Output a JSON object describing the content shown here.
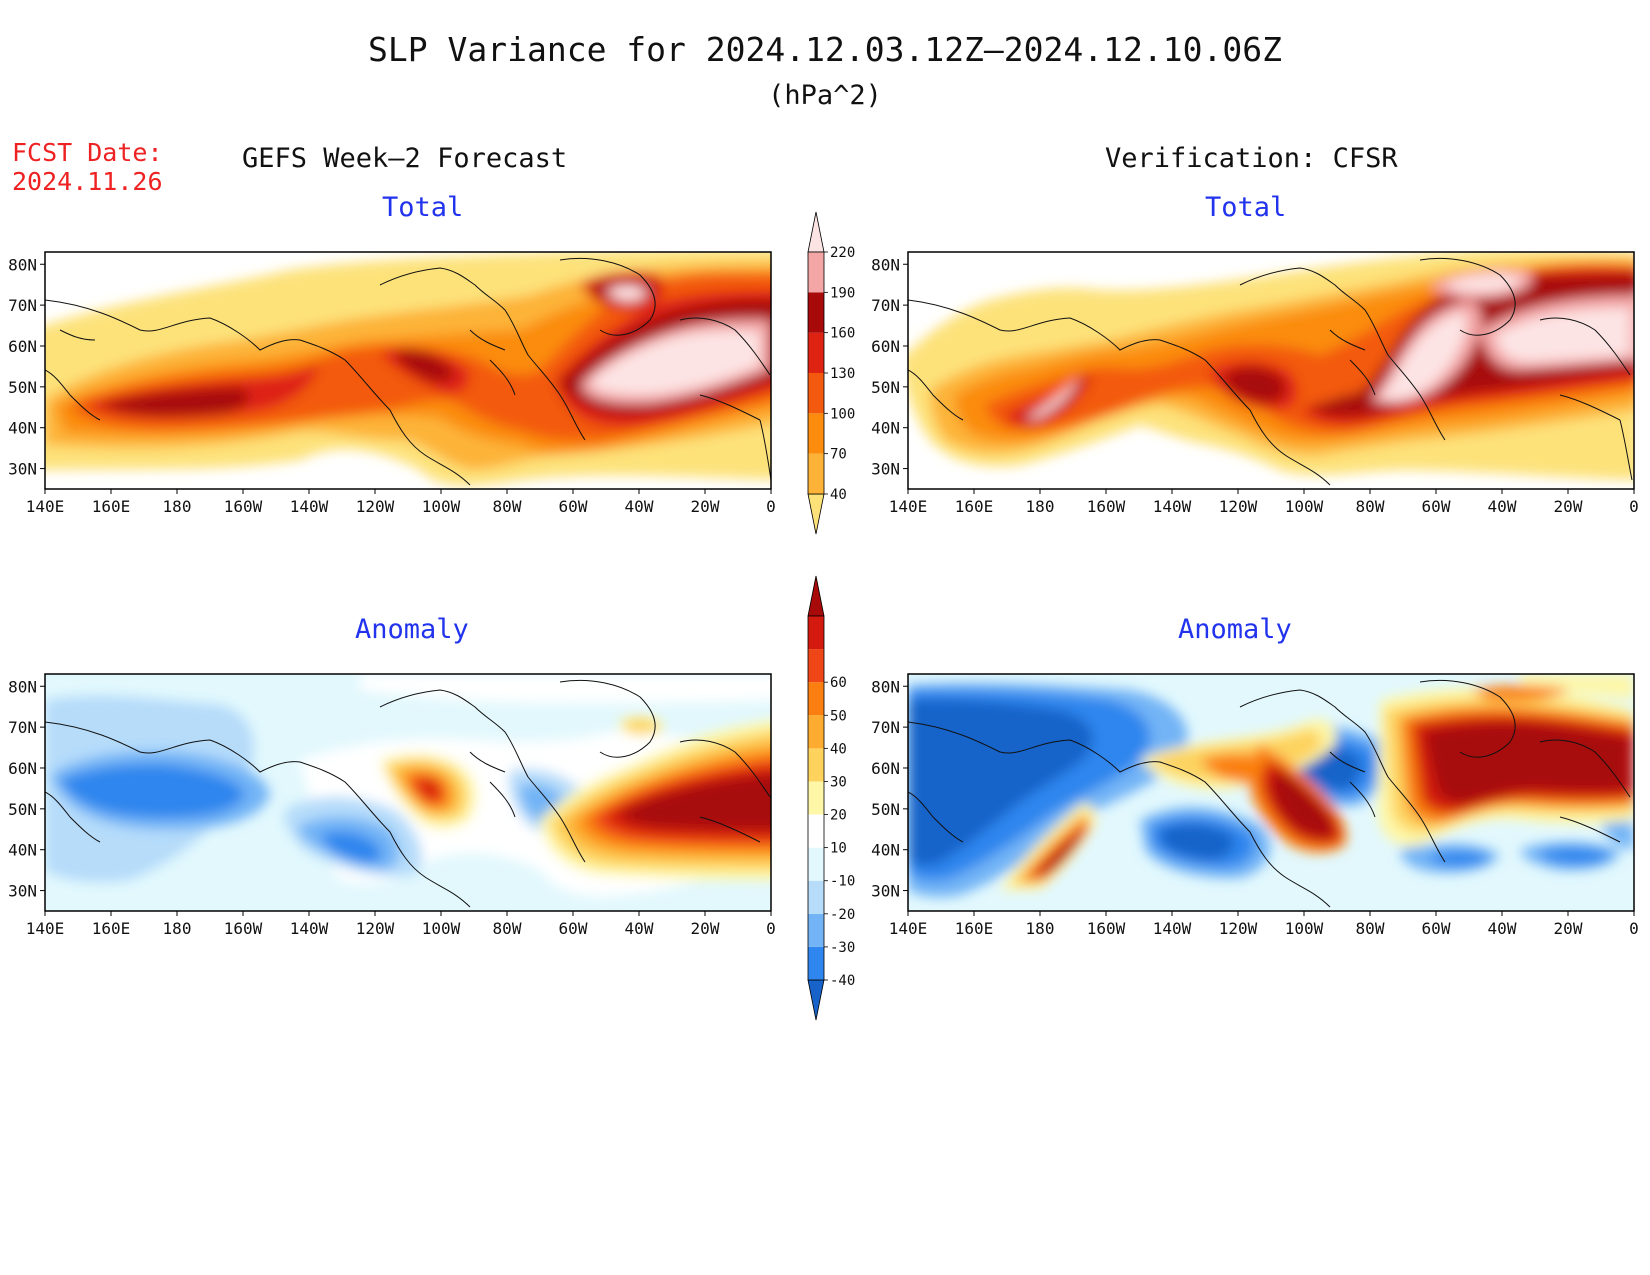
{
  "title": "SLP Variance for 2024.12.03.12Z–2024.12.10.06Z",
  "units": "(hPa^2)",
  "forecast_date_label": "FCST Date:",
  "forecast_date": "2024.11.26",
  "columns": {
    "left": "GEFS Week–2 Forecast",
    "right": "Verification: CFSR"
  },
  "panels": [
    {
      "id": "forecast-total",
      "title": "Total",
      "kind": "total"
    },
    {
      "id": "verification-total",
      "title": "Total",
      "kind": "total"
    },
    {
      "id": "forecast-anomaly",
      "title": "Anomaly",
      "kind": "anomaly"
    },
    {
      "id": "verification-anomaly",
      "title": "Anomaly",
      "kind": "anomaly"
    }
  ],
  "lon_labels": [
    "140E",
    "160E",
    "180",
    "160W",
    "140W",
    "120W",
    "100W",
    "80W",
    "60W",
    "40W",
    "20W",
    "0"
  ],
  "lat_labels": [
    "30N",
    "40N",
    "50N",
    "60N",
    "70N",
    "80N"
  ],
  "colorbars": {
    "total": {
      "levels": [
        "40",
        "70",
        "100",
        "130",
        "160",
        "190",
        "220"
      ],
      "colors": [
        "#fde27a",
        "#fdb338",
        "#fb8c0e",
        "#f35a10",
        "#de2313",
        "#a80a0a",
        "#f4a6a6",
        "#fde4e4"
      ]
    },
    "anomaly": {
      "levels": [
        "-40",
        "-30",
        "-20",
        "-10",
        "10",
        "20",
        "30",
        "40",
        "50",
        "60"
      ],
      "colors": [
        "#1763c9",
        "#2f86ee",
        "#72b4f6",
        "#b6dcfa",
        "#e2f8fd",
        "#ffffff",
        "#fef7a8",
        "#fdd35e",
        "#fdac2f",
        "#fa7f10",
        "#ee4616",
        "#d41a0f",
        "#a80a0a"
      ]
    }
  }
}
